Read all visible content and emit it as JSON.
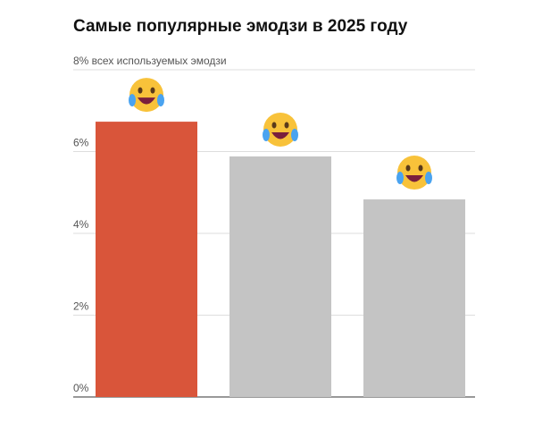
{
  "chart_data": {
    "type": "bar",
    "title": "Самые популярные эмодзи в 2025 году",
    "categories": [
      null,
      null,
      null
    ],
    "values": [
      6.73,
      5.88,
      4.83
    ],
    "colors": [
      "#d9553a",
      "#c4c4c4",
      "#c4c4c4"
    ],
    "ylim": [
      0,
      8
    ],
    "yticks": [
      {
        "value": 0,
        "label": "0%"
      },
      {
        "value": 2,
        "label": "2%"
      },
      {
        "value": 4,
        "label": "4%"
      },
      {
        "value": 6,
        "label": "6%"
      },
      {
        "value": 8,
        "label": "8% всех используемых эмодзи"
      }
    ],
    "grid": true
  }
}
